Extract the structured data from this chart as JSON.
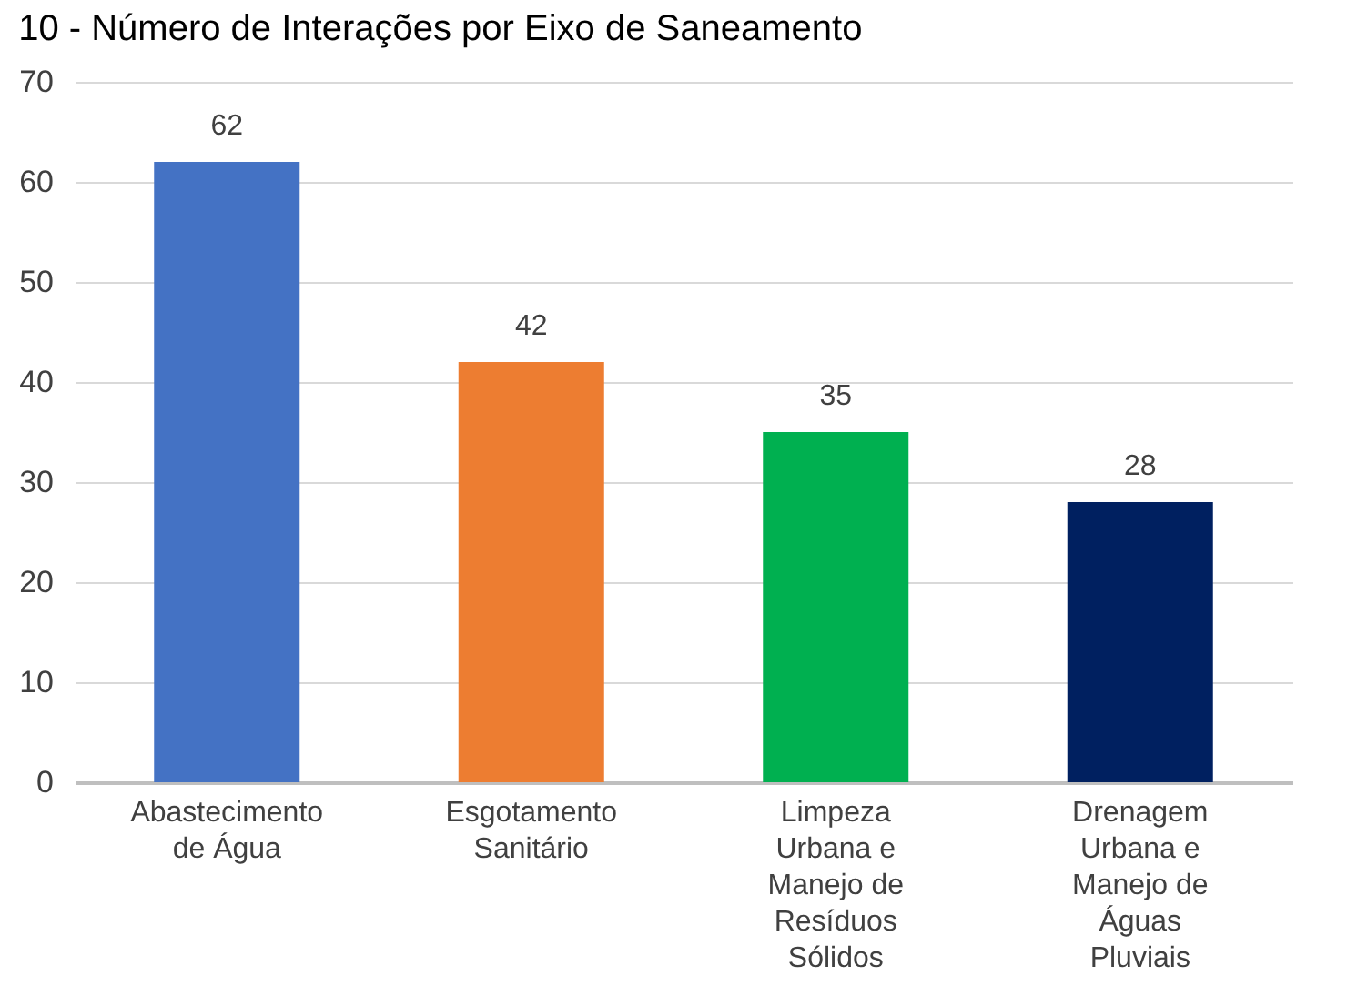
{
  "chart_data": {
    "type": "bar",
    "title": "10 - Número de Interações por Eixo de Saneamento",
    "categories": [
      "Abastecimento de Água",
      "Esgotamento Sanitário",
      "Limpeza Urbana e Manejo de Resíduos Sólidos",
      "Drenagem Urbana e Manejo de Águas Pluviais"
    ],
    "values": [
      62,
      42,
      35,
      28
    ],
    "colors": [
      "#4472c4",
      "#ed7d31",
      "#00b050",
      "#002060"
    ],
    "ylim": [
      0,
      70
    ],
    "yticks": [
      0,
      10,
      20,
      30,
      40,
      50,
      60,
      70
    ],
    "grid": "y",
    "data_labels": true
  }
}
